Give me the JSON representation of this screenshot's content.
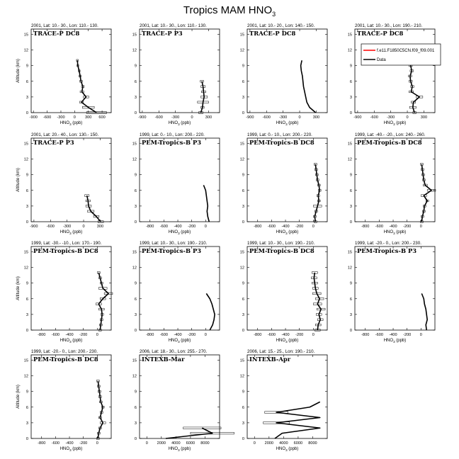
{
  "figure": {
    "title_main": "Tropics MAM HNO",
    "title_sub": "3"
  },
  "legend": {
    "model_label": "f.e11.F1850C5CN.f09_f09.001",
    "data_label": "Data",
    "model_color": "#ff0000",
    "data_color": "#000000"
  },
  "axes": {
    "ylabel": "Altitude (km)",
    "xlabel_main": "HNO",
    "xlabel_sub": "3",
    "xlabel_unit": " (ppb)",
    "yticks": [
      "0",
      "3",
      "6",
      "9",
      "12",
      "15"
    ],
    "ylim": [
      0,
      16
    ]
  },
  "chart_data": [
    {
      "type": "line",
      "title": "2001, Lat: 10.- 30., Lon: 110.- 130.",
      "campaign": "TRACE-P DC8",
      "xlim": [
        -950,
        800
      ],
      "xticks": [
        -900,
        -600,
        -300,
        0,
        300,
        600
      ],
      "show_ylabel": true,
      "y": [
        0,
        1,
        2,
        3,
        4,
        5,
        6,
        7,
        8,
        9,
        10
      ],
      "x": [
        480,
        300,
        150,
        250,
        160,
        180,
        140,
        120,
        100,
        70,
        60
      ],
      "err": [
        220,
        130,
        40,
        60,
        40,
        30,
        30,
        25,
        20,
        20,
        20
      ]
    },
    {
      "type": "line",
      "title": "2001, Lat: 10.- 30., Lon: 110.- 130.",
      "campaign": "TRACE-P P3",
      "xlim": [
        -950,
        500
      ],
      "xticks": [
        -900,
        -600,
        -300,
        0,
        300
      ],
      "show_ylabel": false,
      "y": [
        0,
        1,
        2,
        3,
        4,
        5,
        6
      ],
      "x": [
        160,
        190,
        200,
        220,
        210,
        200,
        180
      ],
      "err": [
        40,
        30,
        100,
        60,
        40,
        40,
        30
      ]
    },
    {
      "type": "line",
      "title": "2001, Lat: 10.- 20., Lon: 140.- 150.",
      "campaign": "TRACE-P DC8",
      "xlim": [
        -950,
        500
      ],
      "xticks": [
        -900,
        -600,
        -300,
        0,
        300
      ],
      "show_ylabel": false,
      "y": [
        0,
        1,
        2,
        3,
        4,
        5,
        6,
        7,
        8,
        9,
        10
      ],
      "x": [
        290,
        180,
        130,
        110,
        90,
        70,
        60,
        50,
        30,
        20,
        40
      ],
      "err": [
        0,
        0,
        0,
        0,
        0,
        0,
        0,
        0,
        0,
        0,
        0
      ]
    },
    {
      "type": "line",
      "title": "2001, Lat: 10.- 30., Lon: 190.- 210.",
      "campaign": "TRACE-P DC8",
      "xlim": [
        -950,
        500
      ],
      "xticks": [
        -900,
        -600,
        -300,
        0,
        300
      ],
      "show_ylabel": false,
      "y": [
        0,
        1,
        2,
        3,
        4,
        5,
        6,
        7,
        8,
        9,
        10
      ],
      "x": [
        130,
        100,
        110,
        220,
        70,
        90,
        60,
        50,
        80,
        60,
        100
      ],
      "err": [
        30,
        60,
        40,
        60,
        40,
        30,
        30,
        30,
        30,
        30,
        30
      ]
    },
    {
      "type": "line",
      "title": "2001, Lat: 20.- 40., Lon: 130.- 150.",
      "campaign": "TRACE-P P3",
      "xlim": [
        -950,
        500
      ],
      "xticks": [
        -900,
        -600,
        -300,
        0,
        300
      ],
      "show_ylabel": true,
      "y": [
        0,
        1,
        2,
        3,
        4,
        5
      ],
      "x": [
        310,
        230,
        130,
        90,
        80,
        60
      ],
      "err": [
        50,
        50,
        60,
        50,
        40,
        40
      ]
    },
    {
      "type": "line",
      "title": "1999, Lat: 0.- 10., Lon: 200.- 220.",
      "campaign": "PEM-Tropics-B P3",
      "xlim": [
        -950,
        200
      ],
      "xticks": [
        -800,
        -600,
        -400,
        -200,
        0
      ],
      "show_ylabel": false,
      "y": [
        0,
        1,
        2,
        3,
        4,
        5,
        6,
        7
      ],
      "x": [
        50,
        30,
        20,
        30,
        20,
        10,
        0,
        -30
      ],
      "err": [
        0,
        0,
        0,
        0,
        0,
        0,
        0,
        0
      ]
    },
    {
      "type": "line",
      "title": "1999, Lat: 0.- 10., Lon: 200.- 220.",
      "campaign": "PEM-Tropics-B DC8",
      "xlim": [
        -950,
        200
      ],
      "xticks": [
        -800,
        -600,
        -400,
        -200,
        0
      ],
      "show_ylabel": false,
      "y": [
        0,
        1,
        2,
        3,
        4,
        5,
        6,
        7,
        8,
        9,
        10,
        11
      ],
      "x": [
        30,
        20,
        40,
        60,
        80,
        70,
        90,
        80,
        60,
        50,
        40,
        30
      ],
      "err": [
        20,
        20,
        20,
        60,
        20,
        20,
        20,
        20,
        20,
        20,
        20,
        20
      ]
    },
    {
      "type": "line",
      "title": "1999, Lat: -40.- -20., Lon: 240.- 260.",
      "campaign": "PEM-Tropics-B DC8",
      "xlim": [
        -950,
        200
      ],
      "xticks": [
        -800,
        -600,
        -400,
        -200,
        0
      ],
      "show_ylabel": false,
      "y": [
        0,
        1,
        2,
        3,
        4,
        5,
        6,
        7,
        8,
        9,
        10,
        11
      ],
      "x": [
        10,
        20,
        40,
        50,
        90,
        40,
        150,
        60,
        40,
        30,
        20,
        10
      ],
      "err": [
        20,
        20,
        20,
        20,
        20,
        40,
        60,
        30,
        20,
        20,
        20,
        20
      ]
    },
    {
      "type": "line",
      "title": "1999, Lat: -30.- -10., Lon: 170.- 190.",
      "campaign": "PEM-Tropics-B DC8",
      "xlim": [
        -950,
        200
      ],
      "xticks": [
        -800,
        -600,
        -400,
        -200,
        0
      ],
      "show_ylabel": true,
      "y": [
        0,
        1,
        2,
        3,
        4,
        5,
        6,
        7,
        8,
        9,
        10,
        11
      ],
      "x": [
        40,
        50,
        60,
        70,
        60,
        20,
        80,
        160,
        80,
        60,
        40,
        20
      ],
      "err": [
        20,
        20,
        20,
        20,
        40,
        40,
        40,
        60,
        60,
        20,
        20,
        20
      ]
    },
    {
      "type": "line",
      "title": "1999, Lat: 10.- 30., Lon: 190.- 210.",
      "campaign": "PEM-Tropics-B P3",
      "xlim": [
        -950,
        200
      ],
      "xticks": [
        -800,
        -600,
        -400,
        -200,
        0
      ],
      "show_ylabel": false,
      "y": [
        0,
        1,
        2,
        3,
        4,
        5,
        6,
        7
      ],
      "x": [
        60,
        100,
        120,
        130,
        110,
        90,
        60,
        10
      ],
      "err": [
        0,
        0,
        0,
        0,
        0,
        0,
        0,
        0
      ]
    },
    {
      "type": "line",
      "title": "1999, Lat: 10.- 30., Lon: 190.- 210.",
      "campaign": "PEM-Tropics-B DC8",
      "xlim": [
        -950,
        200
      ],
      "xticks": [
        -800,
        -600,
        -400,
        -200,
        0
      ],
      "show_ylabel": false,
      "y": [
        0,
        1,
        2,
        3,
        4,
        5,
        6,
        7,
        8,
        9,
        10,
        11
      ],
      "x": [
        60,
        70,
        100,
        80,
        110,
        60,
        90,
        50,
        30,
        20,
        10,
        20
      ],
      "err": [
        40,
        40,
        40,
        40,
        60,
        60,
        60,
        60,
        40,
        40,
        40,
        40
      ]
    },
    {
      "type": "line",
      "title": "1999, Lat: -20.- 0., Lon: 200.- 230.",
      "campaign": "PEM-Tropics-B P3",
      "xlim": [
        -950,
        200
      ],
      "xticks": [
        -800,
        -600,
        -400,
        -200,
        0
      ],
      "show_ylabel": false,
      "y": [
        0,
        1,
        2,
        3,
        4,
        5,
        6,
        7
      ],
      "x": [
        80,
        70,
        90,
        80,
        70,
        50,
        40,
        10
      ],
      "err": [
        0,
        0,
        0,
        0,
        0,
        0,
        0,
        0
      ]
    },
    {
      "type": "line",
      "title": "1999, Lat: -20.- 0., Lon: 200.- 230.",
      "campaign": "PEM-Tropics-B DC8",
      "xlim": [
        -950,
        200
      ],
      "xticks": [
        -800,
        -600,
        -400,
        -200,
        0
      ],
      "show_ylabel": true,
      "y": [
        0,
        1,
        2,
        3,
        4,
        5,
        6,
        7,
        8,
        9,
        10,
        11
      ],
      "x": [
        10,
        20,
        40,
        80,
        40,
        60,
        80,
        50,
        40,
        30,
        20,
        10
      ],
      "err": [
        20,
        20,
        20,
        40,
        20,
        20,
        20,
        20,
        20,
        20,
        20,
        20
      ]
    },
    {
      "type": "line",
      "title": "2006, Lat: 18.- 30., Lon: 255.- 270.",
      "campaign": "INTEXB-Mar",
      "xlim": [
        -1000,
        10000
      ],
      "xticks": [
        0,
        2000,
        4000,
        6000,
        8000
      ],
      "show_ylabel": false,
      "y": [
        0,
        1,
        2
      ],
      "x": [
        2600,
        9000,
        7600
      ],
      "err": [
        0,
        3000,
        2600
      ]
    },
    {
      "type": "line",
      "title": "2006, Lat: 15.- 25., Lon: 190.- 210.",
      "campaign": "INTEXB-Apr",
      "xlim": [
        -1000,
        10000
      ],
      "xticks": [
        0,
        2000,
        4000,
        6000,
        8000
      ],
      "show_ylabel": false,
      "y": [
        0,
        1,
        2,
        3,
        4,
        5,
        6,
        7
      ],
      "x": [
        2800,
        3800,
        9000,
        3000,
        9000,
        3000,
        7600,
        9000
      ],
      "err": [
        0,
        0,
        0,
        1800,
        0,
        1600,
        0,
        0
      ]
    }
  ]
}
